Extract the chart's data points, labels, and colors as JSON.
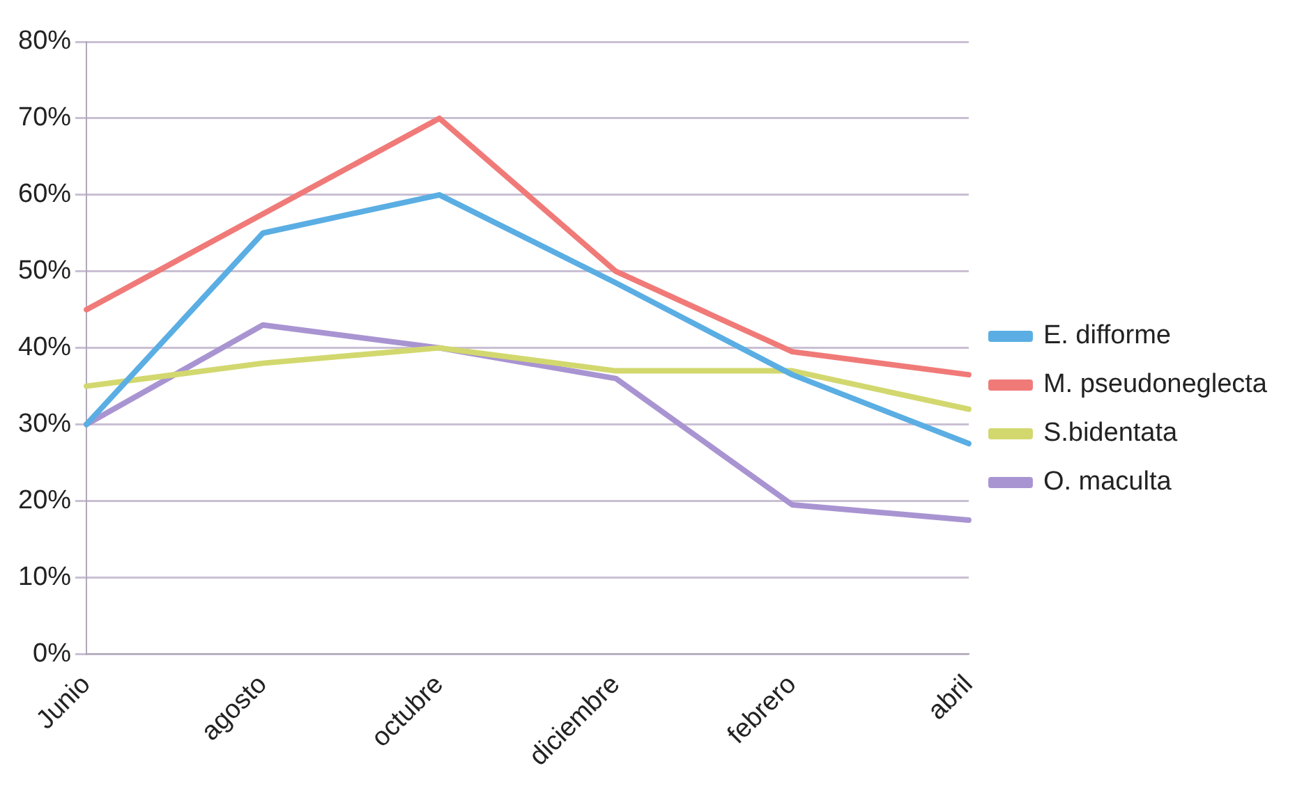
{
  "chart_data": {
    "type": "line",
    "categories": [
      "Junio",
      "agosto",
      "octubre",
      "diciembre",
      "febrero",
      "abril"
    ],
    "series": [
      {
        "name": "E. difforme",
        "color": "#5aaee3",
        "values": [
          30,
          55,
          60,
          48.5,
          36.5,
          27.5
        ]
      },
      {
        "name": "M. pseudoneglecta",
        "color": "#f07a78",
        "values": [
          45,
          57.5,
          70,
          50,
          39.5,
          36.5
        ]
      },
      {
        "name": "S.bidentata",
        "color": "#d2d86e",
        "values": [
          35,
          38,
          40,
          37,
          37,
          32
        ]
      },
      {
        "name": "O. maculta",
        "color": "#a994d2",
        "values": [
          30,
          43,
          40,
          36,
          19.5,
          17.5
        ]
      }
    ],
    "ylim": [
      0,
      80
    ],
    "yticks": [
      {
        "value": 0,
        "label": "0%"
      },
      {
        "value": 10,
        "label": "10%"
      },
      {
        "value": 20,
        "label": "20%"
      },
      {
        "value": 30,
        "label": "30%"
      },
      {
        "value": 40,
        "label": "40%"
      },
      {
        "value": 50,
        "label": "50%"
      },
      {
        "value": 60,
        "label": "60%"
      },
      {
        "value": 70,
        "label": "70%"
      },
      {
        "value": 80,
        "label": "80%"
      }
    ],
    "grid": "y",
    "legend": "right",
    "marker": "none",
    "line_style": "solid"
  }
}
